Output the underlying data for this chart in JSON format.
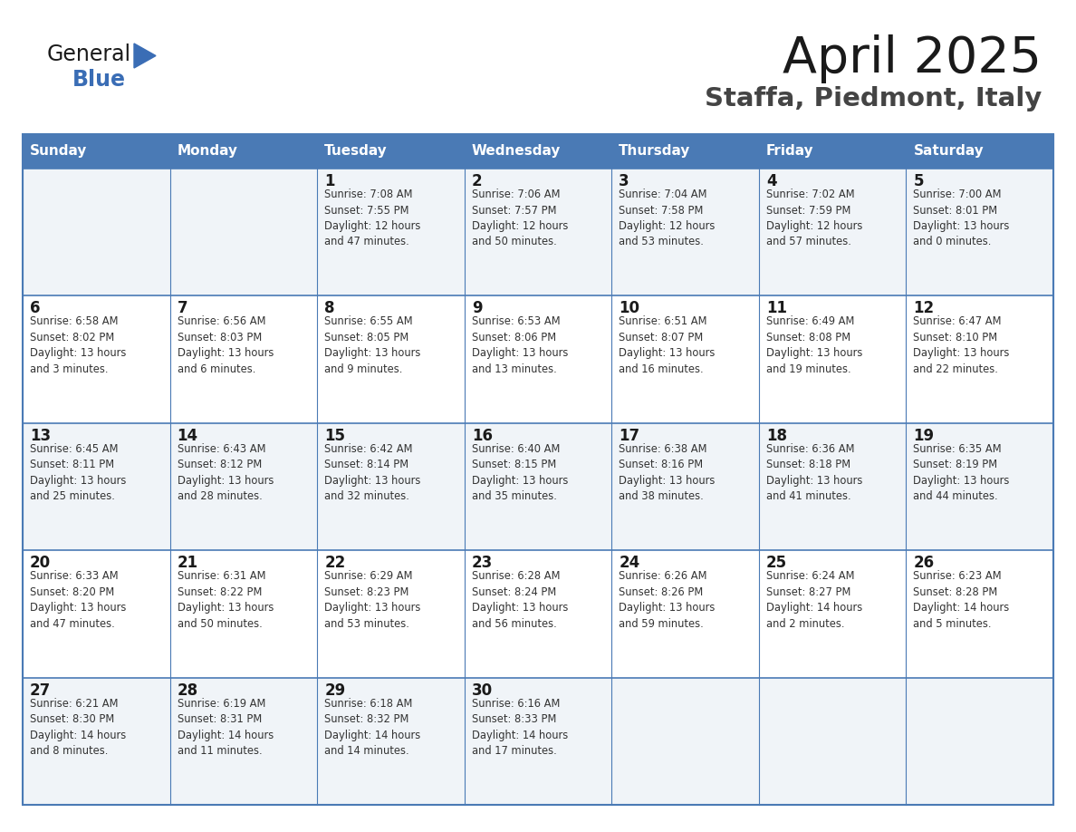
{
  "title": "April 2025",
  "subtitle": "Staffa, Piedmont, Italy",
  "header_bg": "#4a7ab5",
  "header_text": "#FFFFFF",
  "row_bg_odd": "#f0f4f8",
  "row_bg_even": "#ffffff",
  "border_color": "#4a7ab5",
  "text_color": "#333333",
  "logo_black": "#1a1a1a",
  "logo_blue": "#3a6db5",
  "days_of_week": [
    "Sunday",
    "Monday",
    "Tuesday",
    "Wednesday",
    "Thursday",
    "Friday",
    "Saturday"
  ],
  "weeks": [
    [
      {
        "day": "",
        "info": ""
      },
      {
        "day": "",
        "info": ""
      },
      {
        "day": "1",
        "info": "Sunrise: 7:08 AM\nSunset: 7:55 PM\nDaylight: 12 hours\nand 47 minutes."
      },
      {
        "day": "2",
        "info": "Sunrise: 7:06 AM\nSunset: 7:57 PM\nDaylight: 12 hours\nand 50 minutes."
      },
      {
        "day": "3",
        "info": "Sunrise: 7:04 AM\nSunset: 7:58 PM\nDaylight: 12 hours\nand 53 minutes."
      },
      {
        "day": "4",
        "info": "Sunrise: 7:02 AM\nSunset: 7:59 PM\nDaylight: 12 hours\nand 57 minutes."
      },
      {
        "day": "5",
        "info": "Sunrise: 7:00 AM\nSunset: 8:01 PM\nDaylight: 13 hours\nand 0 minutes."
      }
    ],
    [
      {
        "day": "6",
        "info": "Sunrise: 6:58 AM\nSunset: 8:02 PM\nDaylight: 13 hours\nand 3 minutes."
      },
      {
        "day": "7",
        "info": "Sunrise: 6:56 AM\nSunset: 8:03 PM\nDaylight: 13 hours\nand 6 minutes."
      },
      {
        "day": "8",
        "info": "Sunrise: 6:55 AM\nSunset: 8:05 PM\nDaylight: 13 hours\nand 9 minutes."
      },
      {
        "day": "9",
        "info": "Sunrise: 6:53 AM\nSunset: 8:06 PM\nDaylight: 13 hours\nand 13 minutes."
      },
      {
        "day": "10",
        "info": "Sunrise: 6:51 AM\nSunset: 8:07 PM\nDaylight: 13 hours\nand 16 minutes."
      },
      {
        "day": "11",
        "info": "Sunrise: 6:49 AM\nSunset: 8:08 PM\nDaylight: 13 hours\nand 19 minutes."
      },
      {
        "day": "12",
        "info": "Sunrise: 6:47 AM\nSunset: 8:10 PM\nDaylight: 13 hours\nand 22 minutes."
      }
    ],
    [
      {
        "day": "13",
        "info": "Sunrise: 6:45 AM\nSunset: 8:11 PM\nDaylight: 13 hours\nand 25 minutes."
      },
      {
        "day": "14",
        "info": "Sunrise: 6:43 AM\nSunset: 8:12 PM\nDaylight: 13 hours\nand 28 minutes."
      },
      {
        "day": "15",
        "info": "Sunrise: 6:42 AM\nSunset: 8:14 PM\nDaylight: 13 hours\nand 32 minutes."
      },
      {
        "day": "16",
        "info": "Sunrise: 6:40 AM\nSunset: 8:15 PM\nDaylight: 13 hours\nand 35 minutes."
      },
      {
        "day": "17",
        "info": "Sunrise: 6:38 AM\nSunset: 8:16 PM\nDaylight: 13 hours\nand 38 minutes."
      },
      {
        "day": "18",
        "info": "Sunrise: 6:36 AM\nSunset: 8:18 PM\nDaylight: 13 hours\nand 41 minutes."
      },
      {
        "day": "19",
        "info": "Sunrise: 6:35 AM\nSunset: 8:19 PM\nDaylight: 13 hours\nand 44 minutes."
      }
    ],
    [
      {
        "day": "20",
        "info": "Sunrise: 6:33 AM\nSunset: 8:20 PM\nDaylight: 13 hours\nand 47 minutes."
      },
      {
        "day": "21",
        "info": "Sunrise: 6:31 AM\nSunset: 8:22 PM\nDaylight: 13 hours\nand 50 minutes."
      },
      {
        "day": "22",
        "info": "Sunrise: 6:29 AM\nSunset: 8:23 PM\nDaylight: 13 hours\nand 53 minutes."
      },
      {
        "day": "23",
        "info": "Sunrise: 6:28 AM\nSunset: 8:24 PM\nDaylight: 13 hours\nand 56 minutes."
      },
      {
        "day": "24",
        "info": "Sunrise: 6:26 AM\nSunset: 8:26 PM\nDaylight: 13 hours\nand 59 minutes."
      },
      {
        "day": "25",
        "info": "Sunrise: 6:24 AM\nSunset: 8:27 PM\nDaylight: 14 hours\nand 2 minutes."
      },
      {
        "day": "26",
        "info": "Sunrise: 6:23 AM\nSunset: 8:28 PM\nDaylight: 14 hours\nand 5 minutes."
      }
    ],
    [
      {
        "day": "27",
        "info": "Sunrise: 6:21 AM\nSunset: 8:30 PM\nDaylight: 14 hours\nand 8 minutes."
      },
      {
        "day": "28",
        "info": "Sunrise: 6:19 AM\nSunset: 8:31 PM\nDaylight: 14 hours\nand 11 minutes."
      },
      {
        "day": "29",
        "info": "Sunrise: 6:18 AM\nSunset: 8:32 PM\nDaylight: 14 hours\nand 14 minutes."
      },
      {
        "day": "30",
        "info": "Sunrise: 6:16 AM\nSunset: 8:33 PM\nDaylight: 14 hours\nand 17 minutes."
      },
      {
        "day": "",
        "info": ""
      },
      {
        "day": "",
        "info": ""
      },
      {
        "day": "",
        "info": ""
      }
    ]
  ]
}
